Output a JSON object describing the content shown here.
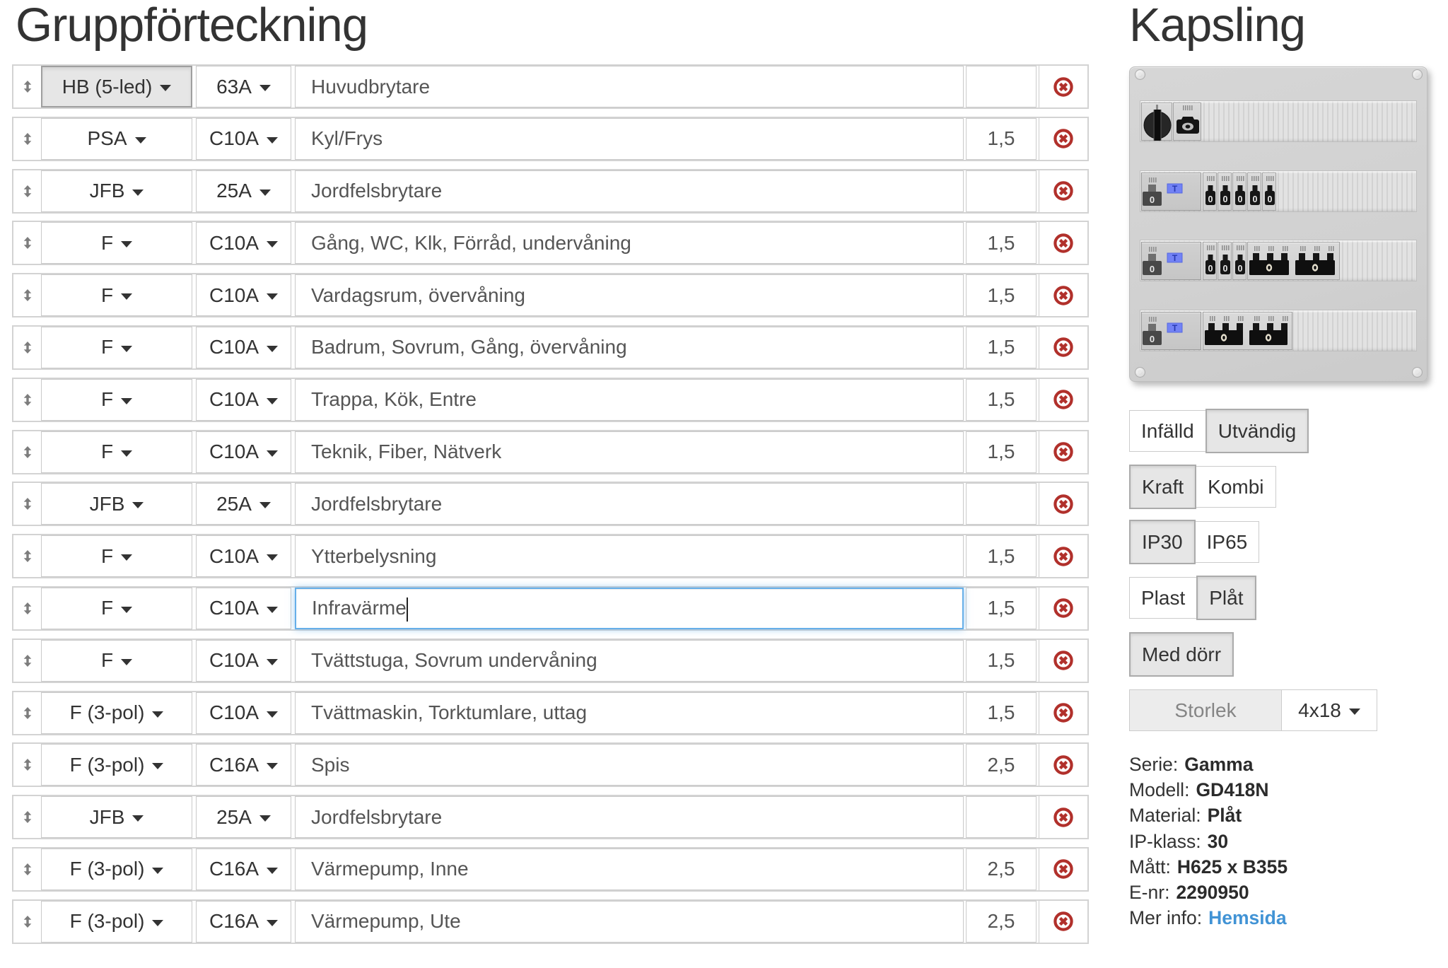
{
  "left": {
    "title": "Gruppförteckning"
  },
  "rows": [
    {
      "type": "HB (5-led)",
      "amp": "63A",
      "desc": "Huvudbrytare",
      "area": "",
      "type_active": true,
      "desc_focused": false
    },
    {
      "type": "PSA",
      "amp": "C10A",
      "desc": "Kyl/Frys",
      "area": "1,5",
      "type_active": false,
      "desc_focused": false
    },
    {
      "type": "JFB",
      "amp": "25A",
      "desc": "Jordfelsbrytare",
      "area": "",
      "type_active": false,
      "desc_focused": false
    },
    {
      "type": "F",
      "amp": "C10A",
      "desc": "Gång, WC, Klk, Förråd, undervåning",
      "area": "1,5",
      "type_active": false,
      "desc_focused": false
    },
    {
      "type": "F",
      "amp": "C10A",
      "desc": "Vardagsrum, övervåning",
      "area": "1,5",
      "type_active": false,
      "desc_focused": false
    },
    {
      "type": "F",
      "amp": "C10A",
      "desc": "Badrum, Sovrum, Gång, övervåning",
      "area": "1,5",
      "type_active": false,
      "desc_focused": false
    },
    {
      "type": "F",
      "amp": "C10A",
      "desc": "Trappa, Kök, Entre",
      "area": "1,5",
      "type_active": false,
      "desc_focused": false
    },
    {
      "type": "F",
      "amp": "C10A",
      "desc": "Teknik, Fiber, Nätverk",
      "area": "1,5",
      "type_active": false,
      "desc_focused": false
    },
    {
      "type": "JFB",
      "amp": "25A",
      "desc": "Jordfelsbrytare",
      "area": "",
      "type_active": false,
      "desc_focused": false
    },
    {
      "type": "F",
      "amp": "C10A",
      "desc": "Ytterbelysning",
      "area": "1,5",
      "type_active": false,
      "desc_focused": false
    },
    {
      "type": "F",
      "amp": "C10A",
      "desc": "Infravärme",
      "area": "1,5",
      "type_active": false,
      "desc_focused": true
    },
    {
      "type": "F",
      "amp": "C10A",
      "desc": "Tvättstuga, Sovrum undervåning",
      "area": "1,5",
      "type_active": false,
      "desc_focused": false
    },
    {
      "type": "F (3-pol)",
      "amp": "C10A",
      "desc": "Tvättmaskin, Torktumlare, uttag",
      "area": "1,5",
      "type_active": false,
      "desc_focused": false
    },
    {
      "type": "F (3-pol)",
      "amp": "C16A",
      "desc": "Spis",
      "area": "2,5",
      "type_active": false,
      "desc_focused": false
    },
    {
      "type": "JFB",
      "amp": "25A",
      "desc": "Jordfelsbrytare",
      "area": "",
      "type_active": false,
      "desc_focused": false
    },
    {
      "type": "F (3-pol)",
      "amp": "C16A",
      "desc": "Värmepump, Inne",
      "area": "2,5",
      "type_active": false,
      "desc_focused": false
    },
    {
      "type": "F (3-pol)",
      "amp": "C16A",
      "desc": "Värmepump, Ute",
      "area": "2,5",
      "type_active": false,
      "desc_focused": false
    }
  ],
  "right": {
    "title": "Kapsling",
    "toggles": {
      "mount": {
        "options": [
          {
            "label": "Infälld",
            "selected": false
          },
          {
            "label": "Utvändig",
            "selected": true
          }
        ]
      },
      "kind": {
        "options": [
          {
            "label": "Kraft",
            "selected": true
          },
          {
            "label": "Kombi",
            "selected": false
          }
        ]
      },
      "ip": {
        "options": [
          {
            "label": "IP30",
            "selected": true
          },
          {
            "label": "IP65",
            "selected": false
          }
        ]
      },
      "material": {
        "options": [
          {
            "label": "Plast",
            "selected": false
          },
          {
            "label": "Plåt",
            "selected": true
          }
        ]
      },
      "door": {
        "label": "Med dörr",
        "selected": true
      },
      "size": {
        "label": "Storlek",
        "value": "4x18"
      }
    },
    "details": [
      {
        "label": "Serie:",
        "value": "Gamma",
        "link": false
      },
      {
        "label": "Modell:",
        "value": "GD418N",
        "link": false
      },
      {
        "label": "Material:",
        "value": "Plåt",
        "link": false
      },
      {
        "label": "IP-klass:",
        "value": "30",
        "link": false
      },
      {
        "label": "Mått:",
        "value": "H625 x B355",
        "link": false
      },
      {
        "label": "E-nr:",
        "value": "2290950",
        "link": false
      },
      {
        "label": "Mer info:",
        "value": "Hemsida",
        "link": true
      }
    ]
  },
  "enclosure": {
    "rails": [
      {
        "modules": [
          {
            "t": "main"
          },
          {
            "t": "meter"
          }
        ]
      },
      {
        "modules": [
          {
            "t": "rcd"
          },
          {
            "t": "singles",
            "n": 5
          }
        ]
      },
      {
        "modules": [
          {
            "t": "rcd"
          },
          {
            "t": "singles",
            "n": 3
          },
          {
            "t": "threes",
            "n": 2,
            "w": 131
          }
        ]
      },
      {
        "modules": [
          {
            "t": "rcd"
          },
          {
            "t": "threes",
            "n": 2,
            "w": 127
          }
        ]
      }
    ]
  },
  "icons": {
    "drag": "drag-vertical-icon",
    "delete": "delete-circle-x-icon",
    "caret": "chevron-down-icon"
  },
  "colors": {
    "accent_red": "#b1302b",
    "focus_blue": "#66afe9",
    "link_blue": "#4193d5",
    "border_grey": "#d3d3d3",
    "control_border": "#c9c9c9",
    "active_grey": "#e6e6e6",
    "test_button_blue": "#7282f5"
  }
}
